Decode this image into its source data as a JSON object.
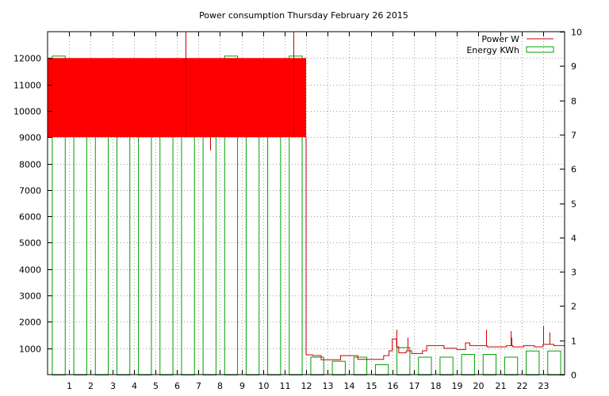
{
  "chart_data": {
    "type": "bar",
    "title": "Power consumption Thursday February 26 2015",
    "xlabel": "",
    "ylabel": "",
    "y2label": "",
    "grid": true,
    "legend_position": "top-right",
    "x_ticks": [
      "1",
      "2",
      "3",
      "4",
      "5",
      "6",
      "7",
      "8",
      "9",
      "10",
      "11",
      "12",
      "13",
      "14",
      "15",
      "16",
      "17",
      "18",
      "19",
      "20",
      "21",
      "22",
      "23"
    ],
    "y_ticks": [
      "1000",
      "2000",
      "3000",
      "4000",
      "5000",
      "6000",
      "7000",
      "8000",
      "9000",
      "10000",
      "11000",
      "12000"
    ],
    "y2_ticks": [
      "0",
      "1",
      "2",
      "3",
      "4",
      "5",
      "6",
      "7",
      "8",
      "9",
      "10"
    ],
    "xlim": [
      0,
      24
    ],
    "ylim": [
      0,
      13000
    ],
    "y2lim": [
      0,
      10
    ],
    "colors": {
      "power": "#cc0000",
      "power_fill": "#ff0000",
      "energy": "#00a000",
      "grid": "#a0a0a0"
    },
    "series": [
      {
        "name": "Power W",
        "axis": "left",
        "kind": "step-line",
        "saturated_band": {
          "x_end": 12.0,
          "y_low": 9000,
          "y_high": 12000
        },
        "spikes_in_band": [
          {
            "x": 6.4,
            "y": 13000
          },
          {
            "x": 7.3,
            "y": 9100
          },
          {
            "x": 7.55,
            "y": 8500
          },
          {
            "x": 11.4,
            "y": 13000
          }
        ],
        "points": [
          [
            12.0,
            750
          ],
          [
            12.3,
            750
          ],
          [
            12.3,
            720
          ],
          [
            12.7,
            720
          ],
          [
            12.7,
            560
          ],
          [
            13.6,
            560
          ],
          [
            13.6,
            720
          ],
          [
            14.4,
            720
          ],
          [
            14.4,
            580
          ],
          [
            15.6,
            580
          ],
          [
            15.6,
            720
          ],
          [
            15.85,
            720
          ],
          [
            15.85,
            900
          ],
          [
            16.0,
            900
          ],
          [
            16.0,
            1350
          ],
          [
            16.2,
            1350
          ],
          [
            16.2,
            1050
          ],
          [
            16.3,
            1050
          ],
          [
            16.3,
            830
          ],
          [
            16.65,
            830
          ],
          [
            16.65,
            900
          ],
          [
            16.9,
            900
          ],
          [
            16.9,
            800
          ],
          [
            17.4,
            800
          ],
          [
            17.4,
            900
          ],
          [
            17.6,
            900
          ],
          [
            17.6,
            1100
          ],
          [
            18.4,
            1100
          ],
          [
            18.4,
            1000
          ],
          [
            19.0,
            1000
          ],
          [
            19.0,
            950
          ],
          [
            19.4,
            950
          ],
          [
            19.4,
            1200
          ],
          [
            19.6,
            1200
          ],
          [
            19.6,
            1100
          ],
          [
            20.4,
            1100
          ],
          [
            20.4,
            1050
          ],
          [
            21.3,
            1050
          ],
          [
            21.3,
            1100
          ],
          [
            21.6,
            1100
          ],
          [
            21.6,
            1050
          ],
          [
            22.1,
            1050
          ],
          [
            22.1,
            1100
          ],
          [
            22.6,
            1100
          ],
          [
            22.6,
            1050
          ],
          [
            23.0,
            1050
          ],
          [
            23.0,
            1150
          ],
          [
            23.5,
            1150
          ],
          [
            23.5,
            1100
          ],
          [
            24.0,
            1100
          ]
        ],
        "spikes": [
          {
            "x": 16.2,
            "y": 1700
          },
          {
            "x": 16.7,
            "y": 1400
          },
          {
            "x": 20.35,
            "y": 1700
          },
          {
            "x": 21.5,
            "y": 1650
          },
          {
            "x": 21.55,
            "y": 1400
          },
          {
            "x": 23.0,
            "y": 1850
          },
          {
            "x": 23.3,
            "y": 1600
          }
        ]
      },
      {
        "name": "Energy KWh",
        "axis": "right",
        "kind": "bar",
        "x": [
          0,
          1,
          2,
          3,
          4,
          5,
          6,
          7,
          8,
          9,
          10,
          11,
          12,
          13,
          14,
          15,
          16,
          17,
          18,
          19,
          20,
          21,
          22,
          23
        ],
        "values": [
          9.3,
          9.2,
          9.2,
          9.1,
          9.1,
          9.0,
          9.1,
          9.2,
          9.3,
          9.2,
          9.2,
          9.3,
          0.52,
          0.4,
          0.52,
          0.3,
          0.8,
          0.52,
          0.52,
          0.6,
          0.6,
          0.52,
          0.7,
          0.7
        ]
      }
    ]
  }
}
